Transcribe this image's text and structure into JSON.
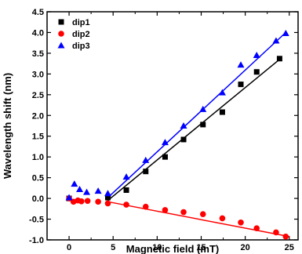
{
  "chart_data": {
    "type": "scatter",
    "xlabel": "Magnetic field (mT)",
    "ylabel": "Wavelength shift (nm)",
    "xlim": [
      -2.5,
      26
    ],
    "ylim": [
      -1.0,
      4.5
    ],
    "xticks": [
      0,
      5,
      10,
      15,
      20,
      25
    ],
    "yticks": [
      -1.0,
      -0.5,
      0.0,
      0.5,
      1.0,
      1.5,
      2.0,
      2.5,
      3.0,
      3.5,
      4.0,
      4.5
    ],
    "legend_position": "top-left",
    "grid": false,
    "series": [
      {
        "name": "dip1",
        "marker": "square",
        "color": "#000000",
        "x": [
          0,
          4.4,
          6.5,
          8.7,
          10.9,
          13.0,
          15.2,
          17.4,
          19.5,
          21.3,
          23.9
        ],
        "y": [
          0.0,
          0.02,
          0.2,
          0.65,
          1.0,
          1.42,
          1.78,
          2.08,
          2.75,
          3.05,
          3.37
        ],
        "fit": {
          "x": [
            4.4,
            24.0
          ],
          "y": [
            -0.05,
            3.37
          ]
        }
      },
      {
        "name": "dip2",
        "marker": "circle",
        "color": "#ff0000",
        "x": [
          0,
          0.5,
          1.0,
          1.4,
          2.1,
          3.3,
          4.4,
          6.5,
          8.7,
          10.9,
          13.0,
          15.2,
          17.4,
          19.5,
          21.3,
          23.5,
          24.6
        ],
        "y": [
          0.0,
          -0.08,
          -0.05,
          -0.07,
          -0.06,
          -0.08,
          -0.12,
          -0.15,
          -0.2,
          -0.28,
          -0.33,
          -0.38,
          -0.48,
          -0.58,
          -0.72,
          -0.82,
          -0.92
        ],
        "fit": {
          "x": [
            4.4,
            25.0
          ],
          "y": [
            -0.08,
            -0.92
          ]
        }
      },
      {
        "name": "dip3",
        "marker": "triangle",
        "color": "#0000ff",
        "x": [
          0,
          0.6,
          1.2,
          2.0,
          3.3,
          4.4,
          6.5,
          8.7,
          10.9,
          13.0,
          15.2,
          17.4,
          19.5,
          21.3,
          23.5,
          24.6
        ],
        "y": [
          0.02,
          0.35,
          0.22,
          0.15,
          0.18,
          0.12,
          0.52,
          0.92,
          1.35,
          1.75,
          2.15,
          2.55,
          3.22,
          3.45,
          3.8,
          3.98
        ],
        "fit": {
          "x": [
            4.4,
            24.5
          ],
          "y": [
            0.02,
            3.98
          ]
        }
      }
    ]
  }
}
